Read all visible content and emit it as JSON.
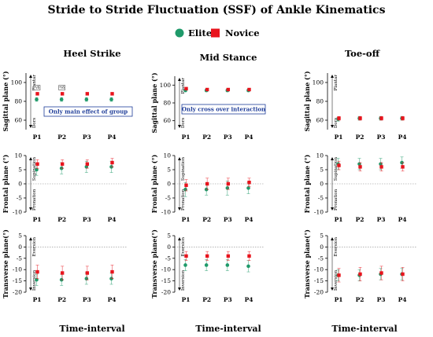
{
  "title": "Stride to Stride Fluctuation (SSF) of Ankle Kinematics",
  "legend": [
    {
      "name": "Elite",
      "color": "#1f9a6a",
      "shape": "circle"
    },
    {
      "name": "Novice",
      "color": "#e8141d",
      "shape": "square"
    }
  ],
  "column_titles": [
    "Heel Strike",
    "Mid Stance",
    "Toe-off"
  ],
  "xlabel": "Time-interval",
  "chart_data": [
    {
      "type": "scatter",
      "panel": "Heel Strike - Sagittal",
      "ylabel": "Sagittal plane (°)",
      "ylim": [
        50,
        110
      ],
      "yticks": [
        60,
        80,
        100
      ],
      "upper_label": "Plantar",
      "lower_label": "Dors",
      "categories": [
        "P1",
        "P2",
        "P3",
        "P4"
      ],
      "series": [
        {
          "name": "Elite",
          "values": [
            82,
            82,
            82,
            82
          ],
          "error": [
            2,
            2,
            2,
            2
          ]
        },
        {
          "name": "Novice",
          "values": [
            88,
            88,
            88,
            88
          ],
          "error": [
            1.5,
            1.5,
            1.5,
            1.5
          ]
        }
      ],
      "annotation": "Only main effect of group",
      "significance_marks": [
        "*/δ",
        "*/δ"
      ]
    },
    {
      "type": "scatter",
      "panel": "Mid Stance - Sagittal",
      "ylabel": "Sagittal plane (°)",
      "ylim": [
        50,
        110
      ],
      "yticks": [
        60,
        80,
        100
      ],
      "upper_label": "Plantar",
      "lower_label": "Dors",
      "categories": [
        "P1",
        "P2",
        "P3",
        "P4"
      ],
      "series": [
        {
          "name": "Elite",
          "values": [
            94,
            94,
            94,
            94
          ],
          "error": [
            1.5,
            1.5,
            1.5,
            1.5
          ]
        },
        {
          "name": "Novice",
          "values": [
            96,
            95,
            95,
            95
          ],
          "error": [
            1.5,
            1.5,
            1.5,
            1.5
          ]
        }
      ],
      "annotation": "Only cross over interaction"
    },
    {
      "type": "scatter",
      "panel": "Toe-off - Sagittal",
      "ylabel": "Sagittal plane (°)",
      "ylim": [
        50,
        110
      ],
      "yticks": [
        60,
        80,
        100
      ],
      "upper_label": "Plantar",
      "lower_label": "Dors",
      "categories": [
        "P1",
        "P2",
        "P3",
        "P4"
      ],
      "series": [
        {
          "name": "Elite",
          "values": [
            61,
            62,
            62,
            62
          ],
          "error": [
            2,
            2,
            2,
            2
          ]
        },
        {
          "name": "Novice",
          "values": [
            62,
            62,
            62,
            62
          ],
          "error": [
            2,
            2,
            2,
            2
          ]
        }
      ]
    },
    {
      "type": "scatter",
      "panel": "Heel Strike - Frontal",
      "ylabel": "Frontal plane (°)",
      "ylim": [
        -10,
        10
      ],
      "yticks": [
        -10,
        -5,
        0,
        5,
        10
      ],
      "upper_label": "Supination",
      "lower_label": "Pronation",
      "categories": [
        "P1",
        "P2",
        "P3",
        "P4"
      ],
      "series": [
        {
          "name": "Elite",
          "values": [
            5,
            5.5,
            6,
            6
          ],
          "error": [
            2,
            2,
            2,
            2
          ]
        },
        {
          "name": "Novice",
          "values": [
            7,
            7,
            7,
            7.5
          ],
          "error": [
            1.5,
            1.5,
            1.5,
            1.5
          ]
        }
      ]
    },
    {
      "type": "scatter",
      "panel": "Mid Stance - Frontal",
      "ylabel": "Frontal plane (°)",
      "ylim": [
        -10,
        10
      ],
      "yticks": [
        -10,
        -5,
        0,
        5,
        10
      ],
      "upper_label": "Supination",
      "lower_label": "Pronation",
      "categories": [
        "P1",
        "P2",
        "P3",
        "P4"
      ],
      "series": [
        {
          "name": "Elite",
          "values": [
            -2,
            -2,
            -1.5,
            -1.5
          ],
          "error": [
            2.5,
            2,
            2.5,
            2
          ]
        },
        {
          "name": "Novice",
          "values": [
            -0.5,
            0,
            0,
            0.5
          ],
          "error": [
            2,
            2,
            2,
            1.5
          ]
        }
      ]
    },
    {
      "type": "scatter",
      "panel": "Toe-off - Frontal",
      "ylabel": "Frontal plane (°)",
      "ylim": [
        -10,
        10
      ],
      "yticks": [
        -10,
        -5,
        0,
        5,
        10
      ],
      "upper_label": "Supination",
      "lower_label": "Pronation",
      "categories": [
        "P1",
        "P2",
        "P3",
        "P4"
      ],
      "series": [
        {
          "name": "Elite",
          "values": [
            7,
            7,
            7,
            7.5
          ],
          "error": [
            2,
            2,
            2,
            2
          ]
        },
        {
          "name": "Novice",
          "values": [
            6.5,
            6,
            6,
            6
          ],
          "error": [
            1.5,
            1.5,
            1.5,
            1.5
          ]
        }
      ]
    },
    {
      "type": "scatter",
      "panel": "Heel Strike - Transverse",
      "ylabel": "Transverse plane(°)",
      "ylim": [
        -20,
        5
      ],
      "yticks": [
        -20,
        -15,
        -10,
        -5,
        0,
        5
      ],
      "upper_label": "Eversion",
      "lower_label": "Inversion",
      "categories": [
        "P1",
        "P2",
        "P3",
        "P4"
      ],
      "series": [
        {
          "name": "Elite",
          "values": [
            -14.5,
            -14.5,
            -14,
            -14
          ],
          "error": [
            2.5,
            2.5,
            2.5,
            2.5
          ]
        },
        {
          "name": "Novice",
          "values": [
            -11,
            -11.5,
            -11.5,
            -11
          ],
          "error": [
            3,
            3,
            3,
            3
          ]
        }
      ]
    },
    {
      "type": "scatter",
      "panel": "Mid Stance - Transverse",
      "ylabel": "Transverse plane(°)",
      "ylim": [
        -20,
        5
      ],
      "yticks": [
        -20,
        -15,
        -10,
        -5,
        0,
        5
      ],
      "upper_label": "Eversion",
      "lower_label": "Inversion",
      "categories": [
        "P1",
        "P2",
        "P3",
        "P4"
      ],
      "series": [
        {
          "name": "Elite",
          "values": [
            -8,
            -8,
            -8,
            -8.5
          ],
          "error": [
            2.5,
            2.5,
            2.5,
            2.5
          ]
        },
        {
          "name": "Novice",
          "values": [
            -4,
            -4,
            -4,
            -4
          ],
          "error": [
            2,
            2,
            2,
            2
          ]
        }
      ]
    },
    {
      "type": "scatter",
      "panel": "Toe-off - Transverse",
      "ylabel": "Transverse plane(°)",
      "ylim": [
        -20,
        5
      ],
      "yticks": [
        -20,
        -15,
        -10,
        -5,
        0,
        5
      ],
      "upper_label": "Eversion",
      "lower_label": "Inversion",
      "categories": [
        "P1",
        "P2",
        "P3",
        "P4"
      ],
      "series": [
        {
          "name": "Elite",
          "values": [
            -12.5,
            -12.5,
            -12,
            -12
          ],
          "error": [
            2.5,
            2.5,
            2.5,
            2.5
          ]
        },
        {
          "name": "Novice",
          "values": [
            -12.5,
            -12,
            -11.5,
            -12
          ],
          "error": [
            3,
            3,
            3,
            3
          ]
        }
      ]
    }
  ]
}
